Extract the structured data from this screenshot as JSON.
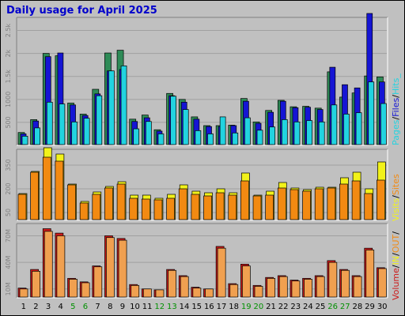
{
  "page": {
    "title": "Daily usage for April 2025"
  },
  "colors": {
    "background": "#c0c0c0",
    "pages": "#2e8b57",
    "files": "#1515d4",
    "hits": "#22d3e0",
    "visits": "#f2f21a",
    "sites": "#f28a12",
    "volume_in": "#f0a050",
    "volume_out": "#cc1a1a",
    "weekend_label": "#009000",
    "weekday_label": "#000000"
  },
  "chart_data": [
    {
      "type": "bar",
      "name": "hits-panel",
      "categories": [
        "1",
        "2",
        "3",
        "4",
        "5",
        "6",
        "7",
        "8",
        "9",
        "10",
        "11",
        "12",
        "13",
        "14",
        "15",
        "16",
        "17",
        "18",
        "19",
        "20",
        "21",
        "22",
        "23",
        "24",
        "25",
        "26",
        "27",
        "28",
        "29",
        "30"
      ],
      "weekend_days": [
        "5",
        "6",
        "12",
        "13",
        "19",
        "20",
        "26",
        "27"
      ],
      "ylim": [
        0,
        2750
      ],
      "ytick_labels": [
        "500",
        "1000",
        "1.5k",
        "2k",
        "2.5k"
      ],
      "ytick_values": [
        500,
        1000,
        1500,
        2000,
        2500
      ],
      "legend": [
        "Pages",
        "/",
        "Files",
        "/",
        "Hits",
        "_"
      ],
      "series": [
        {
          "name": "Pages",
          "values": [
            280,
            560,
            2000,
            1950,
            920,
            680,
            1220,
            2010,
            2070,
            570,
            660,
            340,
            1130,
            1000,
            620,
            430,
            430,
            440,
            1020,
            510,
            760,
            980,
            840,
            850,
            810,
            1600,
            1050,
            1140,
            1510,
            1490
          ]
        },
        {
          "name": "Files",
          "values": [
            250,
            530,
            1930,
            2010,
            880,
            650,
            1120,
            1620,
            1650,
            520,
            600,
            310,
            1080,
            940,
            570,
            410,
            410,
            430,
            960,
            480,
            720,
            960,
            820,
            830,
            780,
            1700,
            1320,
            1250,
            2870,
            1380
          ]
        },
        {
          "name": "Hits",
          "values": [
            200,
            380,
            940,
            900,
            510,
            590,
            1080,
            1620,
            1730,
            360,
            520,
            250,
            1070,
            780,
            320,
            250,
            620,
            270,
            600,
            330,
            400,
            560,
            510,
            540,
            510,
            880,
            680,
            710,
            1380,
            910
          ]
        }
      ]
    },
    {
      "type": "bar",
      "name": "visits-panel",
      "categories": [
        "1",
        "2",
        "3",
        "4",
        "5",
        "6",
        "7",
        "8",
        "9",
        "10",
        "11",
        "12",
        "13",
        "14",
        "15",
        "16",
        "17",
        "18",
        "19",
        "20",
        "21",
        "22",
        "23",
        "24",
        "25",
        "26",
        "27",
        "28",
        "29",
        "30"
      ],
      "ylim": [
        0,
        440
      ],
      "ytick_labels": [
        "50",
        "200",
        "350"
      ],
      "ytick_values": [
        50,
        200,
        350
      ],
      "legend": [
        "Visits",
        "/",
        "Sites"
      ],
      "series": [
        {
          "name": "Visits",
          "values": [
            170,
            310,
            460,
            420,
            230,
            120,
            180,
            215,
            245,
            160,
            160,
            140,
            165,
            225,
            185,
            175,
            200,
            175,
            300,
            160,
            185,
            240,
            205,
            195,
            210,
            210,
            270,
            305,
            200,
            370
          ]
        },
        {
          "name": "Sites",
          "values": [
            165,
            305,
            400,
            375,
            225,
            110,
            165,
            205,
            230,
            140,
            135,
            130,
            140,
            200,
            165,
            155,
            175,
            160,
            250,
            155,
            160,
            205,
            195,
            185,
            200,
            205,
            230,
            250,
            170,
            255
          ]
        }
      ]
    },
    {
      "type": "bar",
      "name": "volume-panel",
      "categories": [
        "1",
        "2",
        "3",
        "4",
        "5",
        "6",
        "7",
        "8",
        "9",
        "10",
        "11",
        "12",
        "13",
        "14",
        "15",
        "16",
        "17",
        "18",
        "19",
        "20",
        "21",
        "22",
        "23",
        "24",
        "25",
        "26",
        "27",
        "28",
        "29",
        "30"
      ],
      "ylim": [
        0,
        82000000
      ],
      "ytick_labels": [
        "10M",
        "40M",
        "70M"
      ],
      "ytick_values": [
        10000000,
        40000000,
        70000000
      ],
      "legend": [
        "Volume",
        "/",
        "IN",
        "/",
        "OUT",
        "/"
      ],
      "series": [
        {
          "name": "OUT",
          "values": [
            11000000,
            32000000,
            78000000,
            73000000,
            22000000,
            18000000,
            36000000,
            70000000,
            67000000,
            15000000,
            10000000,
            9000000,
            32000000,
            25000000,
            12000000,
            10000000,
            58000000,
            16000000,
            38000000,
            14000000,
            23000000,
            25000000,
            20000000,
            22000000,
            25000000,
            42000000,
            32000000,
            25000000,
            56000000,
            34000000
          ]
        },
        {
          "name": "IN",
          "values": [
            10000000,
            30000000,
            75000000,
            70000000,
            21000000,
            17000000,
            35000000,
            68000000,
            65000000,
            14000000,
            10000000,
            9000000,
            31000000,
            24000000,
            11000000,
            10000000,
            56000000,
            15000000,
            36000000,
            13000000,
            22000000,
            24000000,
            19000000,
            21000000,
            24000000,
            40000000,
            31000000,
            24000000,
            54000000,
            33000000
          ]
        }
      ]
    }
  ]
}
